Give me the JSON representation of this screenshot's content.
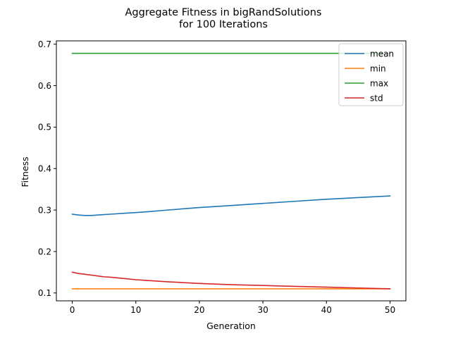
{
  "chart_data": {
    "type": "line",
    "title": "Aggregate Fitness in bigRandSolutions",
    "subtitle": "for 100 Iterations",
    "xlabel": "Generation",
    "ylabel": "Fitness",
    "xlim": [
      -2.5,
      52.5
    ],
    "ylim": [
      0.081,
      0.708
    ],
    "xticks": [
      0,
      10,
      20,
      30,
      40,
      50
    ],
    "yticks": [
      0.1,
      0.2,
      0.3,
      0.4,
      0.5,
      0.6,
      0.7
    ],
    "grid": false,
    "legend_position": "top-right",
    "x": [
      0,
      1,
      2,
      3,
      4,
      5,
      6,
      8,
      10,
      12,
      15,
      20,
      25,
      30,
      35,
      40,
      45,
      50
    ],
    "series": [
      {
        "name": "mean",
        "color": "#1f77b4",
        "values": [
          0.29,
          0.288,
          0.287,
          0.287,
          0.288,
          0.289,
          0.29,
          0.292,
          0.294,
          0.296,
          0.3,
          0.306,
          0.311,
          0.316,
          0.321,
          0.326,
          0.33,
          0.334
        ]
      },
      {
        "name": "min",
        "color": "#ff7f0e",
        "values": [
          0.11,
          0.11,
          0.11,
          0.11,
          0.11,
          0.11,
          0.11,
          0.11,
          0.11,
          0.11,
          0.11,
          0.11,
          0.11,
          0.11,
          0.11,
          0.11,
          0.11,
          0.11
        ]
      },
      {
        "name": "max",
        "color": "#2ca02c",
        "values": [
          0.678,
          0.678,
          0.678,
          0.678,
          0.678,
          0.678,
          0.678,
          0.678,
          0.678,
          0.678,
          0.678,
          0.678,
          0.678,
          0.678,
          0.678,
          0.678,
          0.678,
          0.678
        ]
      },
      {
        "name": "std",
        "color": "#d62728",
        "values": [
          0.15,
          0.147,
          0.145,
          0.143,
          0.141,
          0.139,
          0.138,
          0.135,
          0.132,
          0.13,
          0.127,
          0.123,
          0.12,
          0.118,
          0.116,
          0.114,
          0.112,
          0.11
        ]
      }
    ]
  }
}
